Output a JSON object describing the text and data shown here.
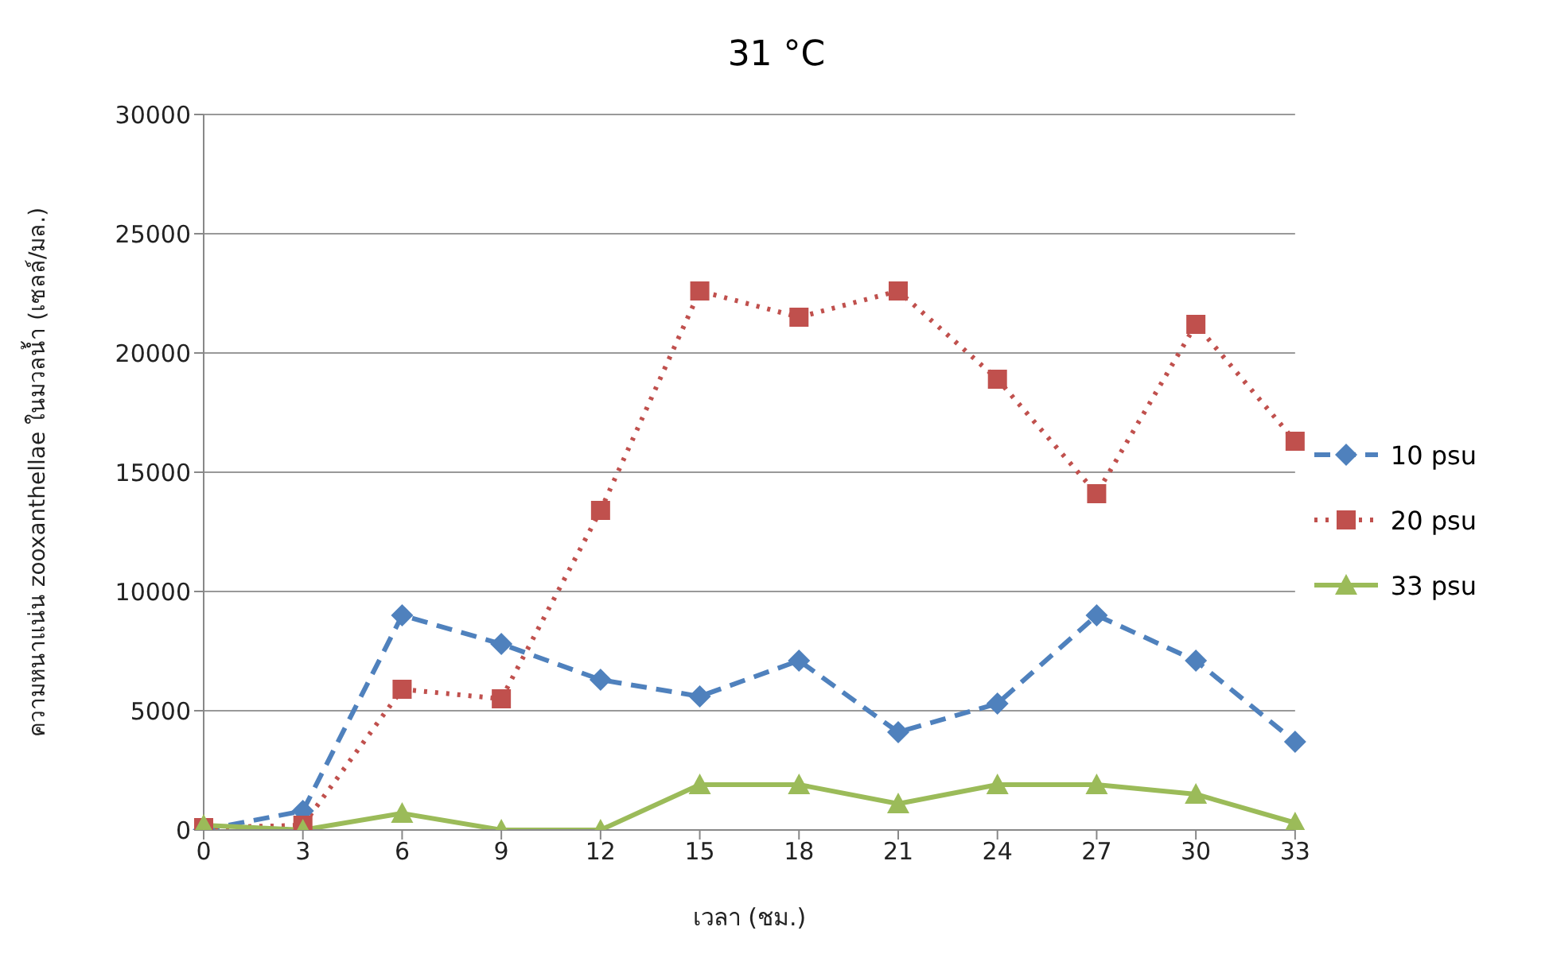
{
  "chart_data": {
    "type": "line",
    "title": "31 °C",
    "xlabel": "เวลา (ชม.)",
    "ylabel": "ความหนาแน่น zooxanthellae ในมวลน้ำ (เซลล์/มล.)",
    "categories": [
      "0",
      "3",
      "6",
      "9",
      "12",
      "15",
      "18",
      "21",
      "24",
      "27",
      "30",
      "33"
    ],
    "series": [
      {
        "name": "10 psu",
        "color": "#4f81bd",
        "marker": "diamond",
        "line_style": "dashed",
        "values": [
          0,
          800,
          9000,
          7800,
          6300,
          5600,
          7100,
          4100,
          5300,
          9000,
          7100,
          3700
        ]
      },
      {
        "name": "20 psu",
        "color": "#c0504d",
        "marker": "square",
        "line_style": "dotted",
        "values": [
          100,
          200,
          5900,
          5500,
          13400,
          22600,
          21500,
          22600,
          18900,
          14100,
          21200,
          16300
        ]
      },
      {
        "name": "33 psu",
        "color": "#9bbb59",
        "marker": "triangle",
        "line_style": "solid",
        "values": [
          200,
          0,
          700,
          0,
          0,
          1900,
          1900,
          1100,
          1900,
          1900,
          1500,
          300
        ]
      }
    ],
    "ylim": [
      0,
      30000
    ],
    "yticks": [
      0,
      5000,
      10000,
      15000,
      20000,
      25000,
      30000
    ],
    "grid": "y",
    "legend": "right"
  }
}
